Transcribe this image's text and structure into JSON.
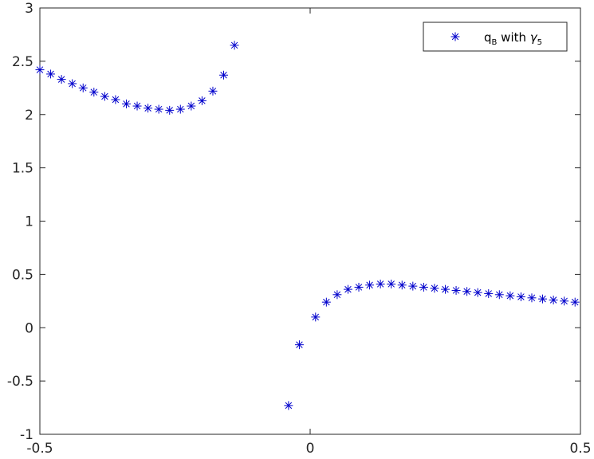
{
  "chart_data": {
    "type": "scatter",
    "title": "",
    "xlabel": "",
    "ylabel": "",
    "xlim": [
      -0.5,
      0.5
    ],
    "ylim": [
      -1,
      3
    ],
    "xticks": [
      "-0.5",
      "0",
      "0.5"
    ],
    "yticks": [
      "-1",
      "-0.5",
      "0",
      "0.5",
      "1",
      "1.5",
      "2",
      "2.5",
      "3"
    ],
    "xtick_values": [
      -0.5,
      0,
      0.5
    ],
    "ytick_values": [
      -1,
      -0.5,
      0,
      0.5,
      1,
      1.5,
      2,
      2.5,
      3
    ],
    "grid": false,
    "legend_position": "top-right",
    "marker": "asterisk",
    "series": [
      {
        "legend_main": "q",
        "legend_sub1": "B",
        "legend_mid": " with ",
        "legend_greek": "γ",
        "legend_sub2": "5",
        "color": "#0000cc",
        "x": [
          -0.5,
          -0.48,
          -0.46,
          -0.44,
          -0.42,
          -0.4,
          -0.38,
          -0.36,
          -0.34,
          -0.32,
          -0.3,
          -0.28,
          -0.26,
          -0.24,
          -0.22,
          -0.2,
          -0.18,
          -0.16,
          -0.14,
          -0.04,
          -0.02,
          0.01,
          0.03,
          0.05,
          0.07,
          0.09,
          0.11,
          0.13,
          0.15,
          0.17,
          0.19,
          0.21,
          0.23,
          0.25,
          0.27,
          0.29,
          0.31,
          0.33,
          0.35,
          0.37,
          0.39,
          0.41,
          0.43,
          0.45,
          0.47,
          0.49
        ],
        "y": [
          2.42,
          2.38,
          2.33,
          2.29,
          2.25,
          2.21,
          2.17,
          2.14,
          2.1,
          2.08,
          2.06,
          2.05,
          2.04,
          2.05,
          2.08,
          2.13,
          2.22,
          2.37,
          2.65,
          -0.73,
          -0.16,
          0.1,
          0.24,
          0.31,
          0.36,
          0.38,
          0.4,
          0.41,
          0.41,
          0.4,
          0.39,
          0.38,
          0.37,
          0.36,
          0.35,
          0.34,
          0.33,
          0.32,
          0.31,
          0.3,
          0.29,
          0.28,
          0.27,
          0.26,
          0.25,
          0.24
        ]
      }
    ]
  }
}
